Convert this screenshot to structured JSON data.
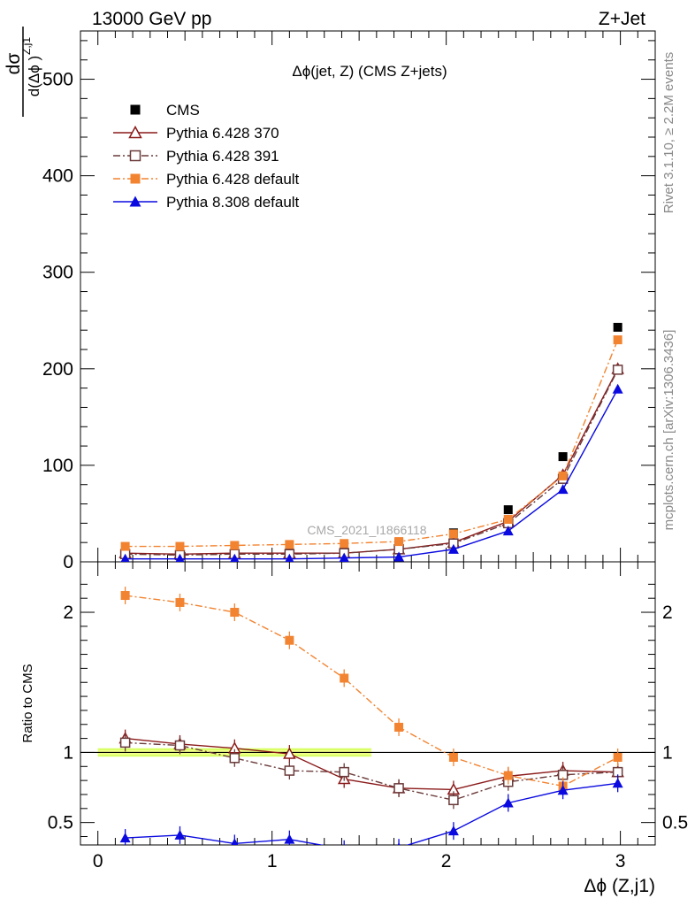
{
  "header": {
    "left": "13000 GeV pp",
    "right": "Z+Jet"
  },
  "side_labels": {
    "rivet": "Rivet 3.1.10, ≥ 2.2M events",
    "mcplots": "mcplots.cern.ch [arXiv:1306.3436]"
  },
  "chart_data": [
    {
      "type": "scatter",
      "title": "Δϕ(jet, Z) (CMS Z+jets)",
      "watermark": "CMS_2021_I1866118",
      "ylabel": "dσ / d(Δϕ^{Z,j1})",
      "ylim": [
        0,
        550
      ],
      "xlim": [
        -0.1,
        3.2
      ],
      "yticks": [
        0,
        100,
        200,
        300,
        400,
        500
      ],
      "legend_placement": "top-left",
      "x": [
        0.157,
        0.471,
        0.785,
        1.1,
        1.414,
        1.728,
        2.042,
        2.356,
        2.67,
        2.985
      ],
      "series": [
        {
          "name": "CMS",
          "color": "#000000",
          "marker": "square",
          "line": "none",
          "values": [
            8,
            7,
            8,
            9,
            10,
            20,
            30,
            54,
            109,
            243
          ]
        },
        {
          "name": "Pythia 6.428 370",
          "color": "#8b1a1a",
          "marker": "open-triangle",
          "line": "solid",
          "values": [
            9,
            8,
            9,
            9,
            9,
            13,
            20,
            42,
            90,
            200
          ]
        },
        {
          "name": "Pythia 6.428 391",
          "color": "#6b3a3a",
          "marker": "open-square",
          "line": "dashdot",
          "values": [
            8,
            7,
            8,
            8,
            9,
            13,
            19,
            40,
            86,
            199
          ]
        },
        {
          "name": "Pythia 6.428 default",
          "color": "#f28330",
          "marker": "filled-square",
          "line": "dashdot",
          "values": [
            16,
            16,
            17,
            18,
            19,
            21,
            29,
            44,
            89,
            230
          ]
        },
        {
          "name": "Pythia 8.308 default",
          "color": "#0a0ae0",
          "marker": "filled-triangle",
          "line": "solid",
          "values": [
            3,
            3,
            3,
            3,
            4,
            5,
            13,
            32,
            75,
            179
          ]
        }
      ]
    },
    {
      "type": "line",
      "ylabel": "Ratio to CMS",
      "xlabel": "Δϕ (Z,j1)",
      "ylim": [
        0.34,
        2.36
      ],
      "xlim": [
        -0.1,
        3.2
      ],
      "yticks": [
        0.5,
        1,
        2
      ],
      "xticks": [
        0,
        1,
        2,
        3
      ],
      "reference": 1,
      "band_xlim": [
        0,
        1.57
      ],
      "x": [
        0.157,
        0.471,
        0.785,
        1.1,
        1.414,
        1.728,
        2.042,
        2.356,
        2.67,
        2.985
      ],
      "series": [
        {
          "name": "Pythia 6.428 370",
          "color": "#8b1a1a",
          "marker": "open-triangle",
          "line": "solid",
          "values": [
            1.1,
            1.06,
            1.03,
            0.99,
            0.81,
            0.745,
            0.735,
            0.83,
            0.87,
            0.86
          ]
        },
        {
          "name": "Pythia 6.428 391",
          "color": "#6b3a3a",
          "marker": "open-square",
          "line": "dashdot",
          "values": [
            1.07,
            1.05,
            0.96,
            0.87,
            0.86,
            0.745,
            0.66,
            0.79,
            0.84,
            0.86
          ]
        },
        {
          "name": "Pythia 6.428 default",
          "color": "#f28330",
          "marker": "filled-square",
          "line": "dashdot",
          "values": [
            2.12,
            2.07,
            2.0,
            1.8,
            1.53,
            1.18,
            0.965,
            0.835,
            0.76,
            0.965
          ]
        },
        {
          "name": "Pythia 8.308 default",
          "color": "#0a0ae0",
          "marker": "filled-triangle",
          "line": "solid",
          "values": [
            0.39,
            0.41,
            0.35,
            0.38,
            0.31,
            0.32,
            0.44,
            0.64,
            0.73,
            0.78
          ]
        }
      ]
    }
  ]
}
